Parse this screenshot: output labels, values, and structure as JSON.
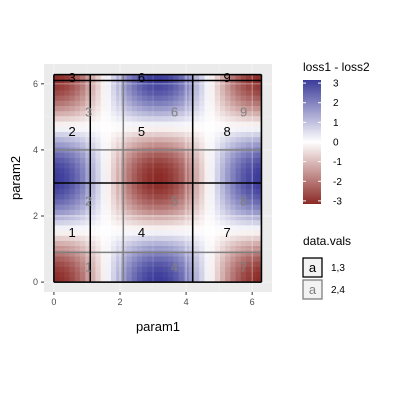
{
  "chart_data": {
    "type": "heatmap",
    "xlabel": "param1",
    "ylabel": "param2",
    "xlim": [
      -0.3,
      6.6
    ],
    "ylim": [
      -0.3,
      6.6
    ],
    "x_ticks": [
      0,
      2,
      4,
      6
    ],
    "y_ticks": [
      0,
      2,
      4,
      6
    ],
    "x_tick_labels": [
      "0",
      "2",
      "4",
      "6"
    ],
    "y_tick_labels": [
      "0",
      "2",
      "4",
      "6"
    ],
    "grid": true,
    "fill": {
      "name": "loss1 - loss2",
      "range": [
        -3,
        3
      ],
      "colorbar_ticks": [
        3,
        2,
        1,
        0,
        -1,
        -2,
        -3
      ],
      "colorbar_labels": [
        "3",
        "2",
        "1",
        "0",
        "-1",
        "-2",
        "-3"
      ],
      "low_color": "#8b2a26",
      "mid_color": "#ffffff",
      "high_color": "#3b3b9a"
    },
    "legend_position": "right",
    "data_vals_legend": {
      "title": "data.vals",
      "entries": [
        {
          "key": "a",
          "label": "1,3",
          "color": "#000000"
        },
        {
          "key": "a",
          "label": "2,4",
          "color": "#808080"
        }
      ]
    },
    "segmentations": [
      {
        "data_vals": "1,3",
        "color": "#000000",
        "x_breaks": [
          0,
          1.1,
          4.2,
          6.28
        ],
        "y_breaks": [
          0,
          3,
          6.1,
          6.28
        ],
        "labels": [
          {
            "text": "1",
            "x": 0.55,
            "y": 1.5
          },
          {
            "text": "2",
            "x": 0.55,
            "y": 4.55
          },
          {
            "text": "3",
            "x": 0.55,
            "y": 6.19
          },
          {
            "text": "4",
            "x": 2.65,
            "y": 1.5
          },
          {
            "text": "5",
            "x": 2.65,
            "y": 4.55
          },
          {
            "text": "6",
            "x": 2.65,
            "y": 6.19
          },
          {
            "text": "7",
            "x": 5.24,
            "y": 1.5
          },
          {
            "text": "8",
            "x": 5.24,
            "y": 4.55
          },
          {
            "text": "9",
            "x": 5.24,
            "y": 6.19
          }
        ]
      },
      {
        "data_vals": "2,4",
        "color": "#808080",
        "x_breaks": [
          0,
          2.1,
          4.2,
          6.28
        ],
        "y_breaks": [
          0,
          0.9,
          4.0,
          6.28
        ],
        "labels": [
          {
            "text": "1",
            "x": 1.05,
            "y": 0.45
          },
          {
            "text": "2",
            "x": 1.05,
            "y": 2.45
          },
          {
            "text": "3",
            "x": 1.05,
            "y": 5.14
          },
          {
            "text": "4",
            "x": 3.65,
            "y": 0.45
          },
          {
            "text": "5",
            "x": 3.65,
            "y": 2.45
          },
          {
            "text": "6",
            "x": 3.65,
            "y": 5.14
          },
          {
            "text": "7",
            "x": 5.74,
            "y": 0.45
          },
          {
            "text": "8",
            "x": 5.74,
            "y": 2.45
          },
          {
            "text": "9",
            "x": 5.74,
            "y": 5.14
          }
        ]
      }
    ]
  }
}
